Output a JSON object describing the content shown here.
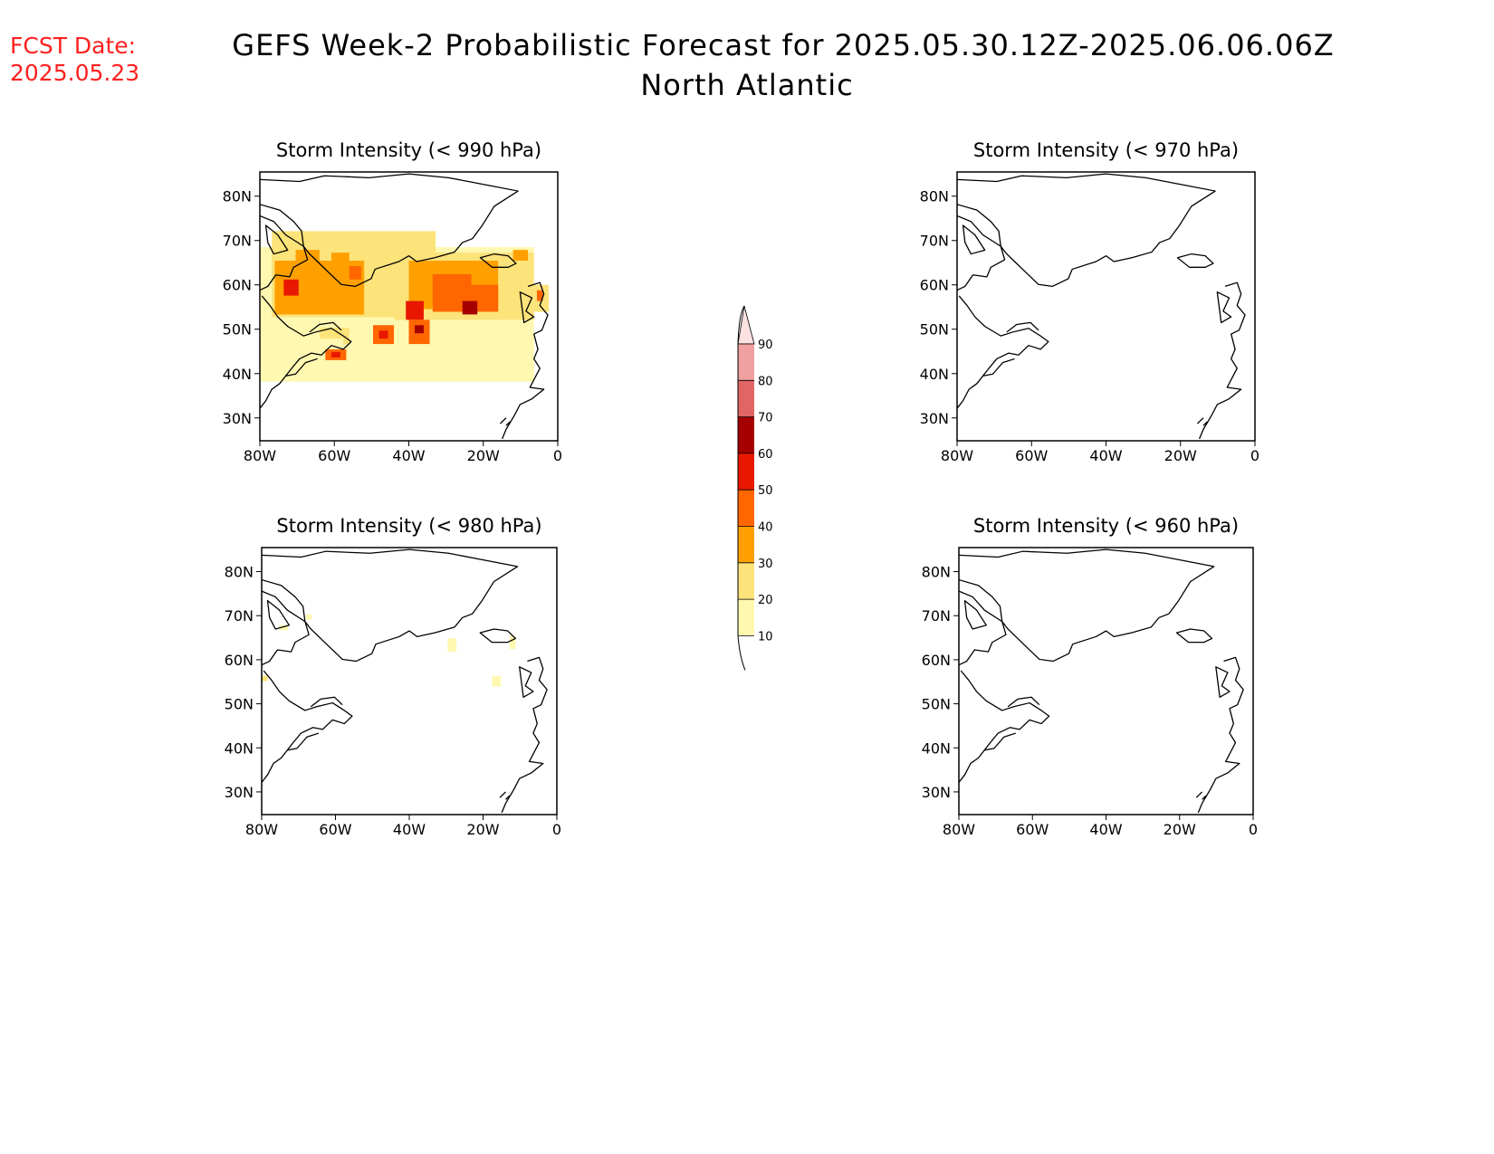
{
  "header": {
    "fcst_label": "FCST Date:",
    "fcst_date": "2025.05.23",
    "title": "GEFS Week-2 Probabilistic Forecast for 2025.05.30.12Z-2025.06.06.06Z",
    "subtitle": "North Atlantic"
  },
  "panels": [
    {
      "id": "p990",
      "title": "Storm Intensity (< 990 hPa)"
    },
    {
      "id": "p980",
      "title": "Storm Intensity (< 980 hPa)"
    },
    {
      "id": "p970",
      "title": "Storm Intensity (< 970 hPa)"
    },
    {
      "id": "p960",
      "title": "Storm Intensity (< 960 hPa)"
    }
  ],
  "axes": {
    "lat_labels": [
      "80N",
      "70N",
      "60N",
      "50N",
      "40N",
      "30N"
    ],
    "lon_labels": [
      "80W",
      "60W",
      "40W",
      "20W",
      "0"
    ]
  },
  "colorbar": {
    "levels": [
      "10",
      "20",
      "30",
      "40",
      "50",
      "60",
      "70",
      "80",
      "90"
    ],
    "colors": [
      "#fff8b0",
      "#fce37a",
      "#ffa000",
      "#ff6600",
      "#e81800",
      "#a50000",
      "#e06666",
      "#f0a0a0",
      "#fde0e0"
    ]
  }
}
